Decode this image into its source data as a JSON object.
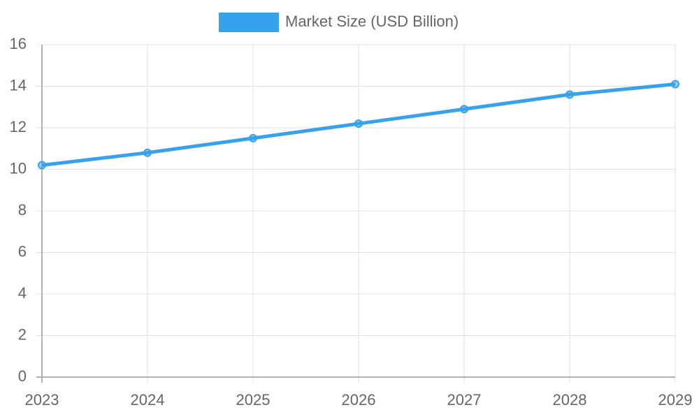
{
  "chart_data": {
    "type": "line",
    "categories": [
      "2023",
      "2024",
      "2025",
      "2026",
      "2027",
      "2028",
      "2029"
    ],
    "series": [
      {
        "name": "Market Size (USD Billion)",
        "color": "#36a2eb",
        "values": [
          10.2,
          10.8,
          11.5,
          12.2,
          12.9,
          13.6,
          14.1
        ]
      }
    ],
    "ylim": [
      0,
      16
    ],
    "yticks": [
      0,
      2,
      4,
      6,
      8,
      10,
      12,
      14,
      16
    ],
    "grid": true,
    "legend": "top"
  }
}
